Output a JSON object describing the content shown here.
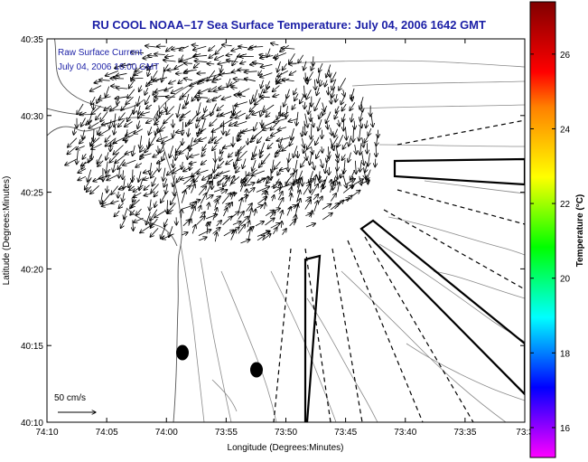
{
  "title": "RU COOL  NOAA–17  Sea Surface Temperature:  July 04, 2006 1642 GMT",
  "inset": {
    "line1": "Raw Surface Current",
    "line2": "July 04, 2006 16:00 GMT"
  },
  "axes": {
    "xlabel": "Longitude (Degrees:Minutes)",
    "ylabel": "Latitude (Degrees:Minutes)",
    "xticks": [
      "74:10",
      "74:05",
      "74:00",
      "73:55",
      "73:50",
      "73:45",
      "73:40",
      "73:35",
      "73:3"
    ],
    "yticks": [
      "40:35",
      "40:30",
      "40:25",
      "40:20",
      "40:15",
      "40:10"
    ]
  },
  "scale_arrow": {
    "label": "50 cm/s"
  },
  "colorbar": {
    "label": "Temperature (°C)",
    "ticks": [
      "26",
      "24",
      "22",
      "20",
      "18",
      "16"
    ],
    "range": [
      15.2,
      27.4
    ],
    "colors": [
      "#ff00ff",
      "#8000ff",
      "#0000ff",
      "#0080ff",
      "#00ffff",
      "#00ff80",
      "#00ff00",
      "#80ff00",
      "#ffff00",
      "#ffc000",
      "#ff8000",
      "#ff0000",
      "#c00000",
      "#800000"
    ]
  },
  "colors": {
    "title": "#1b1fa6",
    "contour": "#7a7a7a",
    "frame": "#000000"
  }
}
